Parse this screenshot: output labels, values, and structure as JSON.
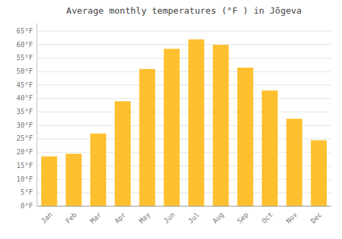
{
  "chart_data": {
    "type": "bar",
    "title": "Average monthly temperatures (°F ) in Jõgeva",
    "categories": [
      "Jan",
      "Feb",
      "Mar",
      "Apr",
      "May",
      "Jun",
      "Jul",
      "Aug",
      "Sep",
      "Oct",
      "Nov",
      "Dec"
    ],
    "values": [
      18.5,
      19.5,
      27.0,
      39.0,
      51.0,
      58.5,
      62.0,
      60.0,
      51.5,
      43.0,
      32.5,
      24.5
    ],
    "color": "#FFC030",
    "ylim": [
      0,
      68
    ],
    "yticks": [
      {
        "value": 0,
        "label": "0°F"
      },
      {
        "value": 5,
        "label": "5°F"
      },
      {
        "value": 10,
        "label": "10°F"
      },
      {
        "value": 15,
        "label": "15°F"
      },
      {
        "value": 20,
        "label": "20°F"
      },
      {
        "value": 25,
        "label": "25°F"
      },
      {
        "value": 30,
        "label": "30°F"
      },
      {
        "value": 35,
        "label": "35°F"
      },
      {
        "value": 40,
        "label": "40°F"
      },
      {
        "value": 45,
        "label": "45°F"
      },
      {
        "value": 50,
        "label": "50°F"
      },
      {
        "value": 55,
        "label": "55°F"
      },
      {
        "value": 60,
        "label": "60°F"
      },
      {
        "value": 65,
        "label": "65°F"
      }
    ],
    "grid": true
  }
}
